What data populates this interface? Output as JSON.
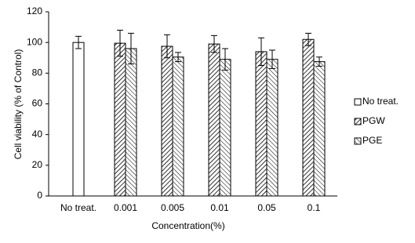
{
  "chart_data": {
    "type": "bar",
    "x_label": "Concentration(%)",
    "y_label": "Cell viability (% of Control)",
    "categories": [
      "No treat.",
      "0.001",
      "0.005",
      "0.01",
      "0.05",
      "0.1"
    ],
    "series": [
      {
        "name": "No treat.",
        "color": "#000000",
        "values": [
          100,
          null,
          null,
          null,
          null,
          null
        ],
        "errors": [
          4,
          null,
          null,
          null,
          null,
          null
        ]
      },
      {
        "name": "PGW",
        "color": "#000000",
        "values": [
          null,
          99.5,
          97.5,
          99,
          94,
          102
        ],
        "errors": [
          null,
          8.5,
          7.5,
          5.5,
          9,
          4
        ]
      },
      {
        "name": "PGE",
        "color": "#000000",
        "values": [
          null,
          96,
          90.5,
          89,
          89,
          87.5
        ],
        "errors": [
          null,
          10,
          3,
          7,
          6,
          3
        ]
      }
    ],
    "ylim": [
      0,
      120
    ],
    "yticks": [
      0,
      20,
      40,
      60,
      80,
      100,
      120
    ],
    "grid": false,
    "legend": "right"
  }
}
